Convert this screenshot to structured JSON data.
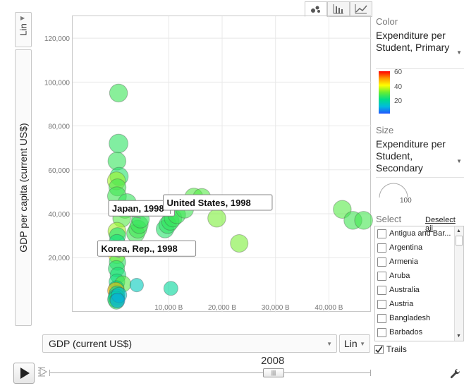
{
  "toolbar": {
    "tabs": [
      {
        "name": "bubble-chart-tab",
        "icon": "bubble-chart-icon",
        "active": true
      },
      {
        "name": "bar-chart-tab",
        "icon": "bar-chart-icon",
        "active": false
      },
      {
        "name": "line-chart-tab",
        "icon": "line-chart-icon",
        "active": false
      }
    ]
  },
  "y_axis": {
    "scale": "Lin",
    "label": "GDP per capita (current US$)"
  },
  "x_axis": {
    "label": "GDP (current US$)",
    "scale": "Lin"
  },
  "panel": {
    "color_label": "Color",
    "color_value": "Expenditure per Student, Primary",
    "color_ticks": [
      "60",
      "40",
      "20"
    ],
    "size_label": "Size",
    "size_value": "Expenditure per Student, Secondary",
    "size_tick": "100",
    "select_label": "Select",
    "deselect_all": "Deselect all",
    "countries": [
      "Antigua and Bar...",
      "Argentina",
      "Armenia",
      "Aruba",
      "Australia",
      "Austria",
      "Bangladesh",
      "Barbados"
    ],
    "trails_label": "Trails",
    "trails_checked": true
  },
  "playback": {
    "year": "2008"
  },
  "colors": {
    "grid": "#e8e8e8",
    "accent_green": "#33dd66"
  },
  "chart_data": {
    "type": "scatter",
    "xlabel": "GDP (current US$)",
    "ylabel": "GDP per capita (current US$)",
    "x_unit": "B",
    "xlim": [
      -8000,
      48000
    ],
    "ylim": [
      -5000,
      130000
    ],
    "xticks": [
      10000,
      20000,
      30000,
      40000
    ],
    "xtick_labels": [
      "10,000 B",
      "20,000 B",
      "30,000 B",
      "40,000 B"
    ],
    "yticks": [
      20000,
      40000,
      60000,
      80000,
      100000,
      120000
    ],
    "ytick_labels": [
      "20,000",
      "40,000",
      "60,000",
      "80,000",
      "100,000",
      "120,000"
    ],
    "color_scale": [
      0,
      60
    ],
    "labels": [
      {
        "text": "Japan, 1998",
        "x": 4800,
        "y": 38000
      },
      {
        "text": "United States, 1998",
        "x": 10300,
        "y": 40000
      },
      {
        "text": "Korea, Rep., 1998",
        "x": 900,
        "y": 20000
      }
    ],
    "points": [
      {
        "x": 600,
        "y": 95000,
        "c": 33,
        "s": 70
      },
      {
        "x": 600,
        "y": 72000,
        "c": 30,
        "s": 75
      },
      {
        "x": 300,
        "y": 64000,
        "c": 32,
        "s": 70
      },
      {
        "x": 700,
        "y": 57000,
        "c": 28,
        "s": 72
      },
      {
        "x": 200,
        "y": 55000,
        "c": 40,
        "s": 70
      },
      {
        "x": 400,
        "y": 52000,
        "c": 35,
        "s": 65
      },
      {
        "x": 300,
        "y": 48000,
        "c": 34,
        "s": 75
      },
      {
        "x": 2200,
        "y": 45000,
        "c": 32,
        "s": 72
      },
      {
        "x": 1800,
        "y": 42000,
        "c": 34,
        "s": 70
      },
      {
        "x": 1200,
        "y": 38000,
        "c": 36,
        "s": 70
      },
      {
        "x": 300,
        "y": 32000,
        "c": 40,
        "s": 70
      },
      {
        "x": 400,
        "y": 30000,
        "c": 26,
        "s": 60
      },
      {
        "x": 300,
        "y": 27000,
        "c": 24,
        "s": 58
      },
      {
        "x": 600,
        "y": 24000,
        "c": 22,
        "s": 55
      },
      {
        "x": 300,
        "y": 21000,
        "c": 45,
        "s": 60
      },
      {
        "x": 400,
        "y": 18000,
        "c": 30,
        "s": 62
      },
      {
        "x": 200,
        "y": 15000,
        "c": 28,
        "s": 60
      },
      {
        "x": 500,
        "y": 12000,
        "c": 25,
        "s": 58
      },
      {
        "x": 300,
        "y": 9000,
        "c": 24,
        "s": 58
      },
      {
        "x": 1400,
        "y": 8000,
        "c": 36,
        "s": 60
      },
      {
        "x": 200,
        "y": 6000,
        "c": 20,
        "s": 55
      },
      {
        "x": 100,
        "y": 5000,
        "c": 50,
        "s": 62
      },
      {
        "x": 300,
        "y": 3500,
        "c": 18,
        "s": 58
      },
      {
        "x": 200,
        "y": 2000,
        "c": 15,
        "s": 60
      },
      {
        "x": 100,
        "y": 1000,
        "c": 22,
        "s": 62
      },
      {
        "x": 200,
        "y": 0,
        "c": 30,
        "s": 55
      },
      {
        "x": 700,
        "y": 3000,
        "c": 12,
        "s": 55
      },
      {
        "x": 400,
        "y": 500,
        "c": 8,
        "s": 52
      },
      {
        "x": 4000,
        "y": 7500,
        "c": 14,
        "s": 45
      },
      {
        "x": 10400,
        "y": 6000,
        "c": 18,
        "s": 48
      },
      {
        "x": 3800,
        "y": 31000,
        "c": 34,
        "s": 70
      },
      {
        "x": 4200,
        "y": 33000,
        "c": 34,
        "s": 70
      },
      {
        "x": 4500,
        "y": 35000,
        "c": 33,
        "s": 68
      },
      {
        "x": 4700,
        "y": 37500,
        "c": 32,
        "s": 68
      },
      {
        "x": 9300,
        "y": 33000,
        "c": 28,
        "s": 68
      },
      {
        "x": 9800,
        "y": 35000,
        "c": 30,
        "s": 68
      },
      {
        "x": 10300,
        "y": 36500,
        "c": 31,
        "s": 68
      },
      {
        "x": 10800,
        "y": 38000,
        "c": 32,
        "s": 68
      },
      {
        "x": 11500,
        "y": 39500,
        "c": 33,
        "s": 68
      },
      {
        "x": 13000,
        "y": 42000,
        "c": 34,
        "s": 68
      },
      {
        "x": 14700,
        "y": 47500,
        "c": 36,
        "s": 72
      },
      {
        "x": 16200,
        "y": 47500,
        "c": 36,
        "s": 68
      },
      {
        "x": 19000,
        "y": 38000,
        "c": 38,
        "s": 70
      },
      {
        "x": 23200,
        "y": 26500,
        "c": 38,
        "s": 68
      },
      {
        "x": 42500,
        "y": 42000,
        "c": 36,
        "s": 70
      },
      {
        "x": 44500,
        "y": 37000,
        "c": 34,
        "s": 70
      },
      {
        "x": 46500,
        "y": 37000,
        "c": 35,
        "s": 70
      }
    ]
  }
}
